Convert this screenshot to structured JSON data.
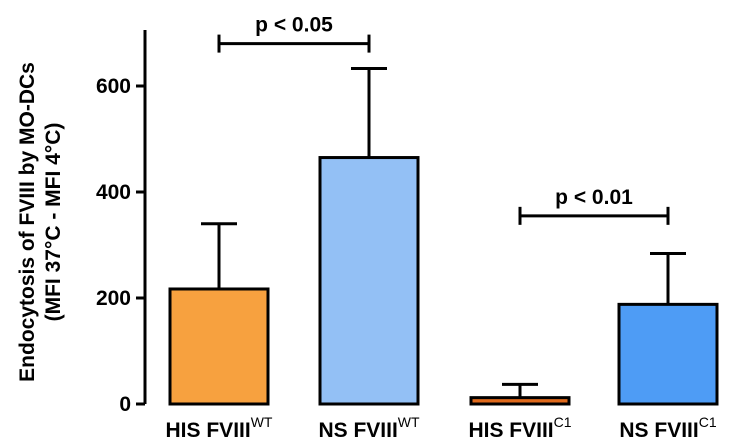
{
  "chart_data": {
    "type": "bar",
    "ylabel_line1": "Endocytosis of FVIII by MO-DCs",
    "ylabel_line2": "(MFI 37°C - MFI 4°C)",
    "ylim": [
      0,
      700
    ],
    "yticks": [
      0,
      200,
      400,
      600
    ],
    "categories": [
      {
        "base": "HIS FVIII",
        "sup": "WT",
        "value": 217,
        "error": 123,
        "color": "#f7a13f"
      },
      {
        "base": "NS FVIII",
        "sup": "WT",
        "value": 465,
        "error": 168,
        "color": "#93c0f5"
      },
      {
        "base": "HIS FVIII",
        "sup": "C1",
        "value": 12,
        "error": 25,
        "color": "#e06a1c"
      },
      {
        "base": "NS FVIII",
        "sup": "C1",
        "value": 188,
        "error": 96,
        "color": "#4e9cf5"
      }
    ],
    "significance": [
      {
        "from": 0,
        "to": 1,
        "label": "p < 0.05",
        "level": 680
      },
      {
        "from": 2,
        "to": 3,
        "label": "p < 0.01",
        "level": 355
      }
    ],
    "grid": false,
    "legend": "none"
  }
}
